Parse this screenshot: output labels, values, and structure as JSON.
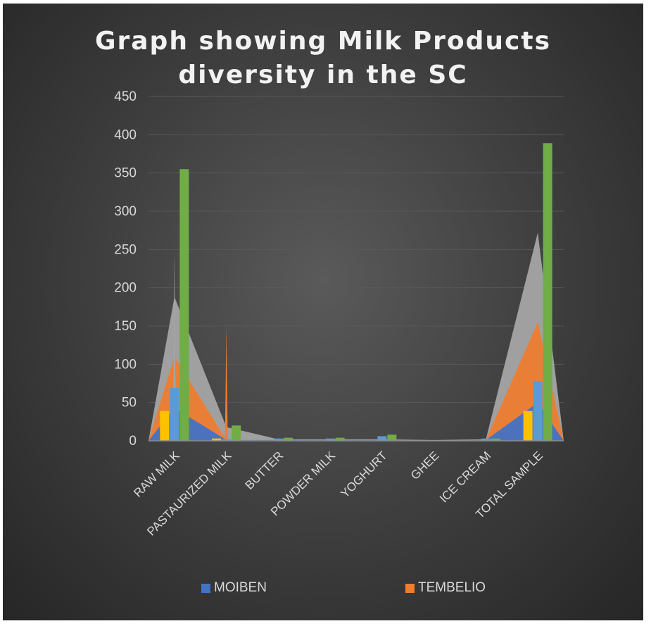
{
  "chart_data": {
    "type": "bar",
    "title_lines": [
      "Graph showing Milk Products",
      "diversity in the SC"
    ],
    "categories": [
      "RAW MILK",
      "PASTAURIZED MILK",
      "BUTTER",
      "POWDER MILK",
      "YOGHURT",
      "GHEE",
      "ICE CREAM",
      "TOTAL SAMPLE"
    ],
    "ylim": [
      0,
      450
    ],
    "yticks": [
      0,
      50,
      100,
      150,
      200,
      250,
      300,
      350,
      400,
      450
    ],
    "grid": true,
    "legend_position": "bottom",
    "area_series": [
      {
        "name": "MOIBEN",
        "color": "#4472c4",
        "values": [
          43,
          1,
          1,
          1,
          1,
          0,
          1,
          50
        ]
      },
      {
        "name": "TEMBELIO",
        "color": "#ed7d31",
        "values": [
          110,
          1,
          1,
          1,
          1,
          0,
          1,
          155
        ]
      },
      {
        "color": "#a5a5a5",
        "values": [
          188,
          18,
          2,
          2,
          2,
          1,
          2,
          272
        ]
      }
    ],
    "bar_series": [
      {
        "color": "#ffc000",
        "values": [
          39,
          3,
          0,
          0,
          0,
          0,
          0,
          39
        ]
      },
      {
        "color": "#5b9bd5",
        "values": [
          69,
          2,
          3,
          3,
          6,
          0,
          3,
          78
        ]
      },
      {
        "color": "#70ad47",
        "values": [
          355,
          20,
          4,
          4,
          8,
          0,
          3,
          389
        ]
      }
    ],
    "peaks": [
      [
        146,
        150,
        0,
        0,
        0,
        0,
        0,
        0
      ],
      [
        246,
        0,
        0,
        0,
        0,
        0,
        0,
        0
      ]
    ]
  }
}
